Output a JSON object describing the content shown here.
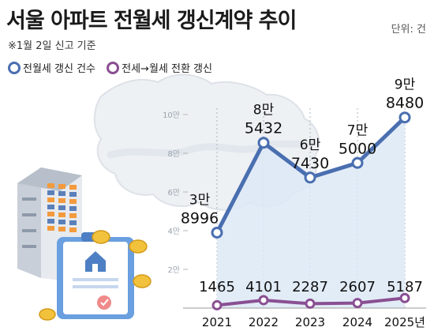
{
  "chart_data": {
    "type": "line",
    "title": "서울 아파트 전월세 갱신계약 추이",
    "unit": "단위: 건",
    "note": "※1월 2일 신고 기준",
    "categories": [
      "2021",
      "2022",
      "2023",
      "2024",
      "2025년"
    ],
    "ylim": [
      0,
      100000
    ],
    "yticks": [
      {
        "value": 20000,
        "label": "2만"
      },
      {
        "value": 40000,
        "label": "4만"
      },
      {
        "value": 60000,
        "label": "6만"
      },
      {
        "value": 80000,
        "label": "8만"
      },
      {
        "value": 100000,
        "label": "10만"
      }
    ],
    "series": [
      {
        "name": "전월세 갱신 건수",
        "color": "#4a6fb0",
        "values": [
          38996,
          85432,
          67430,
          75000,
          98480
        ],
        "labels": [
          [
            "3만",
            "8996"
          ],
          [
            "8만",
            "5432"
          ],
          [
            "6만",
            "7430"
          ],
          [
            "7만",
            "5000"
          ],
          [
            "9만",
            "8480"
          ]
        ]
      },
      {
        "name": "전세→월세 전환 갱신",
        "color": "#8a4f92",
        "values": [
          1465,
          4101,
          2287,
          2607,
          5187
        ],
        "labels": [
          [
            "1465"
          ],
          [
            "4101"
          ],
          [
            "2287"
          ],
          [
            "2607"
          ],
          [
            "5187"
          ]
        ]
      }
    ],
    "grid": true,
    "legend_position": "top-left"
  }
}
